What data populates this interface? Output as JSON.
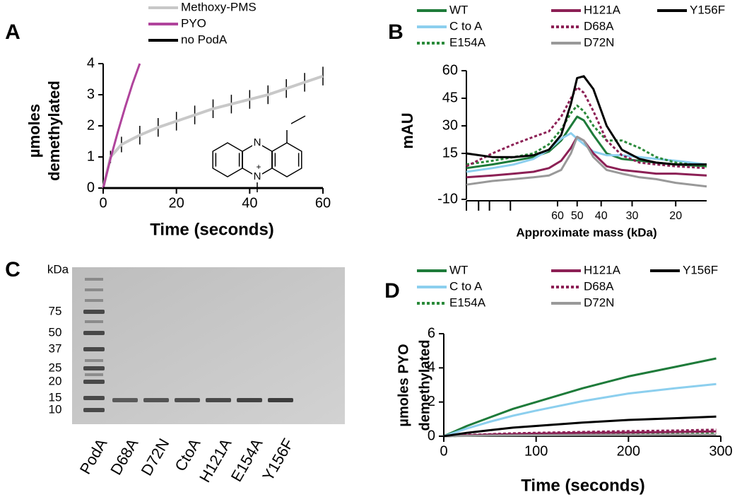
{
  "chart_data": [
    {
      "type": "line",
      "panel": "A",
      "xlabel": "Time (seconds)",
      "ylabel": [
        "µmoles",
        "demethylated"
      ],
      "xlim": [
        0,
        60
      ],
      "xticks": [
        0,
        20,
        40,
        60
      ],
      "ylim": [
        0,
        4
      ],
      "yticks": [
        0,
        1,
        2,
        3,
        4
      ],
      "structure_labels": [
        "N",
        "N",
        "+"
      ],
      "series": [
        {
          "name": "Methoxy-PMS",
          "color": "#c8c8c8",
          "x": [
            0,
            2,
            5,
            10,
            15,
            20,
            25,
            30,
            35,
            40,
            45,
            50,
            55,
            60
          ],
          "values": [
            0,
            1.0,
            1.4,
            1.7,
            1.95,
            2.15,
            2.35,
            2.55,
            2.7,
            2.85,
            3.0,
            3.2,
            3.4,
            3.6
          ],
          "errors": [
            0,
            0.2,
            0.25,
            0.3,
            0.3,
            0.3,
            0.3,
            0.3,
            0.3,
            0.3,
            0.3,
            0.3,
            0.3,
            0.3
          ]
        },
        {
          "name": "PYO",
          "color": "#b0449c",
          "x": [
            0,
            2,
            4,
            6,
            8,
            10
          ],
          "values": [
            0,
            0.95,
            1.8,
            2.6,
            3.35,
            4.0
          ]
        },
        {
          "name": "no PodA",
          "color": "#000000",
          "x": [
            0,
            60
          ],
          "values": [
            0,
            0
          ]
        }
      ]
    },
    {
      "type": "line",
      "panel": "B",
      "xlabel": "Approximate mass (kDa)",
      "ylabel": [
        "mAU"
      ],
      "xscale": "log",
      "xlim": [
        140,
        15
      ],
      "xticks": [
        60,
        50,
        40,
        30,
        20
      ],
      "minor_xticks": [
        140,
        125,
        113,
        93
      ],
      "ylim": [
        -10,
        60
      ],
      "yticks": [
        -10,
        15,
        30,
        45,
        60
      ],
      "x": [
        140,
        110,
        90,
        75,
        65,
        58,
        53,
        50,
        47,
        43,
        38,
        33,
        28,
        24,
        20,
        15
      ],
      "series": [
        {
          "name": "WT",
          "color": "#1e7b3a",
          "values": [
            7,
            9,
            11,
            13,
            16,
            22,
            30,
            35,
            33,
            25,
            15,
            12,
            11,
            10,
            9,
            8
          ]
        },
        {
          "name": "C to A",
          "color": "#8ccfee",
          "values": [
            5,
            7,
            9,
            12,
            17,
            23,
            26,
            23,
            20,
            16,
            14,
            14,
            13,
            12,
            11,
            9
          ]
        },
        {
          "name": "E154A",
          "color": "#2a8a3a",
          "dash": true,
          "values": [
            9,
            11,
            13,
            15,
            20,
            28,
            37,
            41,
            38,
            30,
            22,
            22,
            18,
            13,
            10,
            8
          ]
        },
        {
          "name": "H121A",
          "color": "#8c2055",
          "values": [
            2,
            3,
            4,
            5,
            7,
            11,
            18,
            24,
            22,
            15,
            8,
            6,
            5,
            4,
            4,
            3
          ]
        },
        {
          "name": "D68A",
          "color": "#8c2055",
          "dash": true,
          "values": [
            8,
            15,
            20,
            24,
            27,
            35,
            45,
            51,
            48,
            38,
            22,
            14,
            10,
            9,
            8,
            7
          ]
        },
        {
          "name": "D72N",
          "color": "#999999",
          "values": [
            -2,
            0,
            1,
            2,
            3,
            6,
            15,
            24,
            22,
            13,
            6,
            4,
            2,
            1,
            -1,
            -3
          ]
        },
        {
          "name": "Y156F",
          "color": "#000000",
          "values": [
            15,
            13,
            13,
            14,
            17,
            25,
            42,
            56,
            57,
            50,
            30,
            17,
            12,
            10,
            9,
            9
          ]
        }
      ]
    },
    {
      "type": "gel",
      "panel": "C",
      "ylabel": "kDa",
      "ladder": [
        75,
        50,
        37,
        25,
        20,
        15,
        10
      ],
      "categories": [
        "PodA",
        "D68A",
        "D72N",
        "CtoA",
        "H121A",
        "E154A",
        "Y156F"
      ]
    },
    {
      "type": "line",
      "panel": "D",
      "xlabel": "Time (seconds)",
      "ylabel": [
        "µmoles PYO",
        "demethylated"
      ],
      "xlim": [
        0,
        300
      ],
      "xticks": [
        0,
        100,
        200,
        300
      ],
      "ylim": [
        0,
        6
      ],
      "yticks": [
        0,
        2,
        4,
        6
      ],
      "x": [
        0,
        25,
        50,
        75,
        100,
        150,
        200,
        250,
        295
      ],
      "series": [
        {
          "name": "WT",
          "color": "#1e7b3a",
          "values": [
            0,
            0.6,
            1.1,
            1.6,
            2.0,
            2.8,
            3.5,
            4.05,
            4.55
          ]
        },
        {
          "name": "C to A",
          "color": "#8ccfee",
          "values": [
            0,
            0.45,
            0.85,
            1.2,
            1.5,
            2.05,
            2.5,
            2.8,
            3.05
          ]
        },
        {
          "name": "E154A",
          "color": "#2a8a3a",
          "dash": true,
          "values": [
            0,
            0.03,
            0.05,
            0.07,
            0.08,
            0.1,
            0.12,
            0.13,
            0.15
          ]
        },
        {
          "name": "H121A",
          "color": "#8c2055",
          "values": [
            0,
            0.05,
            0.1,
            0.12,
            0.15,
            0.2,
            0.22,
            0.25,
            0.28
          ]
        },
        {
          "name": "D68A",
          "color": "#8c2055",
          "dash": true,
          "values": [
            0,
            0.08,
            0.12,
            0.17,
            0.2,
            0.25,
            0.3,
            0.33,
            0.38
          ]
        },
        {
          "name": "D72N",
          "color": "#999999",
          "values": [
            0,
            0.02,
            0.04,
            0.05,
            0.06,
            0.07,
            0.08,
            0.09,
            0.1
          ]
        },
        {
          "name": "Y156F",
          "color": "#000000",
          "values": [
            0,
            0.2,
            0.35,
            0.5,
            0.6,
            0.8,
            0.95,
            1.05,
            1.15
          ]
        }
      ]
    }
  ]
}
